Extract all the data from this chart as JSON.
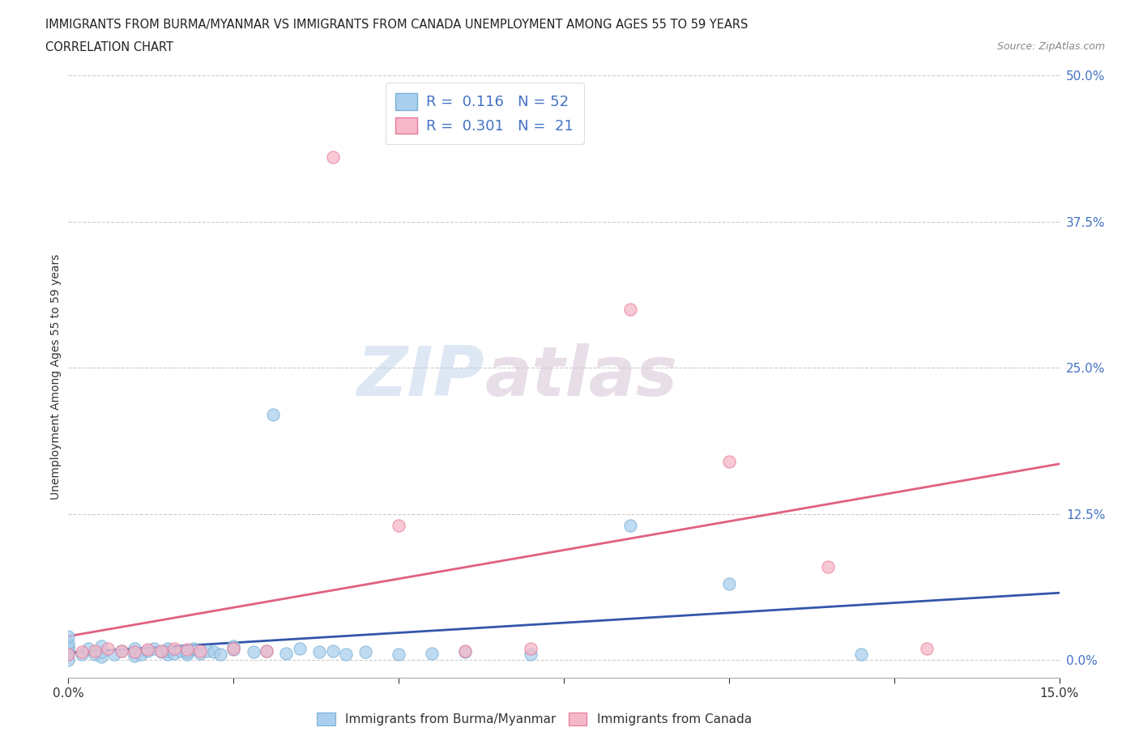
{
  "title_line1": "IMMIGRANTS FROM BURMA/MYANMAR VS IMMIGRANTS FROM CANADA UNEMPLOYMENT AMONG AGES 55 TO 59 YEARS",
  "title_line2": "CORRELATION CHART",
  "source": "Source: ZipAtlas.com",
  "ylabel": "Unemployment Among Ages 55 to 59 years",
  "xlim": [
    0.0,
    0.15
  ],
  "ylim": [
    -0.015,
    0.5
  ],
  "yticks": [
    0.0,
    0.125,
    0.25,
    0.375,
    0.5
  ],
  "legend_R1": "0.116",
  "legend_N1": "52",
  "legend_R2": "0.301",
  "legend_N2": "21",
  "color_burma": "#aacfee",
  "color_canada": "#f5b8c8",
  "color_burma_edge": "#7aafd4",
  "color_canada_edge": "#e87898",
  "color_burma_line": "#3355aa",
  "color_canada_line": "#e06080",
  "watermark_zip": "ZIP",
  "watermark_atlas": "atlas",
  "burma_x": [
    0.0,
    0.0,
    0.0,
    0.0,
    0.0,
    0.0,
    0.0,
    0.002,
    0.003,
    0.004,
    0.005,
    0.005,
    0.005,
    0.007,
    0.008,
    0.01,
    0.01,
    0.01,
    0.011,
    0.012,
    0.013,
    0.014,
    0.015,
    0.015,
    0.015,
    0.016,
    0.017,
    0.018,
    0.018,
    0.019,
    0.02,
    0.021,
    0.022,
    0.023,
    0.025,
    0.025,
    0.028,
    0.03,
    0.031,
    0.033,
    0.035,
    0.038,
    0.04,
    0.042,
    0.045,
    0.05,
    0.055,
    0.06,
    0.07,
    0.085,
    0.1,
    0.12
  ],
  "burma_y": [
    0.0,
    0.005,
    0.007,
    0.01,
    0.012,
    0.015,
    0.02,
    0.005,
    0.01,
    0.005,
    0.003,
    0.007,
    0.012,
    0.005,
    0.008,
    0.004,
    0.007,
    0.01,
    0.005,
    0.008,
    0.01,
    0.007,
    0.005,
    0.008,
    0.01,
    0.006,
    0.008,
    0.005,
    0.007,
    0.01,
    0.006,
    0.008,
    0.007,
    0.005,
    0.009,
    0.012,
    0.007,
    0.008,
    0.21,
    0.006,
    0.01,
    0.007,
    0.008,
    0.005,
    0.007,
    0.005,
    0.006,
    0.007,
    0.005,
    0.115,
    0.065,
    0.005
  ],
  "canada_x": [
    0.0,
    0.002,
    0.004,
    0.006,
    0.008,
    0.01,
    0.012,
    0.014,
    0.016,
    0.018,
    0.02,
    0.025,
    0.03,
    0.04,
    0.05,
    0.06,
    0.07,
    0.085,
    0.1,
    0.115,
    0.13
  ],
  "canada_y": [
    0.005,
    0.007,
    0.008,
    0.01,
    0.008,
    0.007,
    0.009,
    0.008,
    0.01,
    0.009,
    0.008,
    0.01,
    0.008,
    0.43,
    0.115,
    0.008,
    0.01,
    0.3,
    0.17,
    0.08,
    0.01
  ]
}
